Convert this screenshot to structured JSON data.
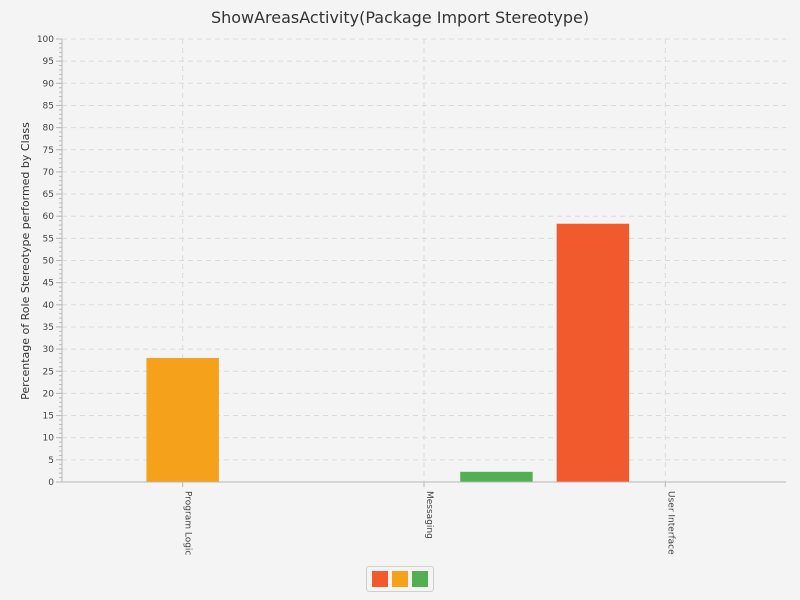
{
  "chart_data": {
    "type": "bar",
    "title": "ShowAreasActivity(Package Import Stereotype)",
    "ylabel": "Percentage of Role Stereotype performed by Class",
    "xlabel": "",
    "ylim": [
      0,
      100
    ],
    "y_major_step": 5,
    "y_minor_step": 1,
    "grid": true,
    "categories": [
      "Program Logic",
      "Messaging",
      "User Interface"
    ],
    "series": [
      {
        "color": "#f05a2c",
        "values": [
          0,
          0,
          58.3
        ]
      },
      {
        "color": "#f5a11b",
        "values": [
          28,
          0,
          0
        ]
      },
      {
        "color": "#52b052",
        "values": [
          0,
          2.3,
          0
        ]
      }
    ],
    "legend_placement": "bottom-center"
  }
}
